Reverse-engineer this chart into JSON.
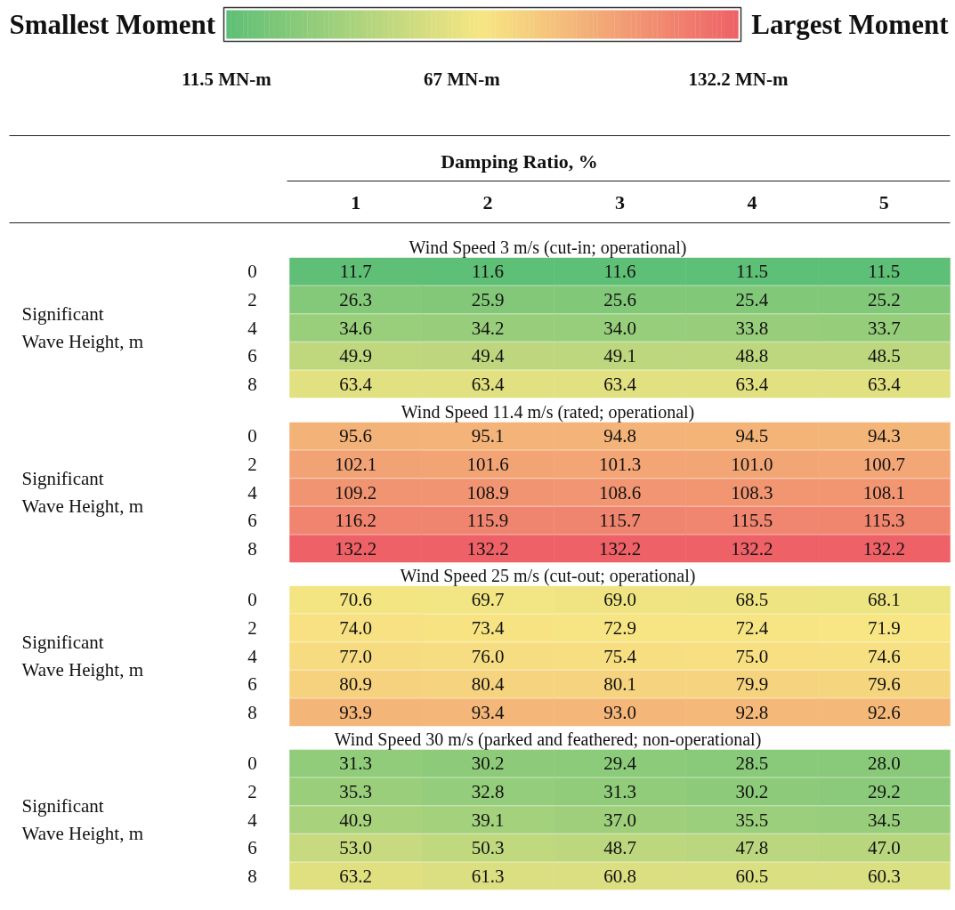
{
  "chart_data": [
    {
      "type": "heatmap",
      "title": "Wind Speed 3 m/s (cut-in; operational)",
      "xlabel": "Damping Ratio, %",
      "ylabel": "Significant\nWave Height, m",
      "annotations": [
        "Smallest Moment",
        "Largest Moment"
      ],
      "categories": [
        "1",
        "2",
        "3",
        "4",
        "5"
      ],
      "y_categories": [
        "0",
        "2",
        "4",
        "6",
        "8"
      ],
      "cells": [
        [
          11.7,
          11.6,
          11.6,
          11.5,
          11.5
        ],
        [
          26.3,
          25.9,
          25.6,
          25.4,
          25.2
        ],
        [
          34.6,
          34.2,
          34.0,
          33.8,
          33.7
        ],
        [
          49.9,
          49.4,
          49.1,
          48.8,
          48.5
        ],
        [
          63.4,
          63.4,
          63.4,
          63.4,
          63.4
        ]
      ],
      "cell_labels": [
        [
          "11.7",
          "11.6",
          "11.6",
          "11.5",
          "11.5"
        ],
        [
          "26.3",
          "25.9",
          "25.6",
          "25.4",
          "25.2"
        ],
        [
          "34.6",
          "34.2",
          "34.0",
          "33.8",
          "33.7"
        ],
        [
          "49.9",
          "49.4",
          "49.1",
          "48.8",
          "48.5"
        ],
        [
          "63.4",
          "63.4",
          "63.4",
          "63.4",
          "63.4"
        ]
      ],
      "data_labels": true,
      "clim": [
        11.5,
        132.2
      ],
      "cticks": [
        {
          "value": 11.5,
          "label": "11.5 MN-m"
        },
        {
          "value": 67,
          "label": "67 MN-m"
        },
        {
          "value": 132.2,
          "label": "132.2 MN-m"
        }
      ]
    },
    {
      "type": "heatmap",
      "title": "Wind Speed 11.4 m/s (rated; operational)",
      "ylabel": "Significant\nWave Height, m",
      "categories": [
        "1",
        "2",
        "3",
        "4",
        "5"
      ],
      "y_categories": [
        "0",
        "2",
        "4",
        "6",
        "8"
      ],
      "cells": [
        [
          95.6,
          95.1,
          94.8,
          94.5,
          94.3
        ],
        [
          102.1,
          101.6,
          101.3,
          101.0,
          100.7
        ],
        [
          109.2,
          108.9,
          108.6,
          108.3,
          108.1
        ],
        [
          116.2,
          115.9,
          115.7,
          115.5,
          115.3
        ],
        [
          132.2,
          132.2,
          132.2,
          132.2,
          132.2
        ]
      ],
      "cell_labels": [
        [
          "95.6",
          "95.1",
          "94.8",
          "94.5",
          "94.3"
        ],
        [
          "102.1",
          "101.6",
          "101.3",
          "101.0",
          "100.7"
        ],
        [
          "109.2",
          "108.9",
          "108.6",
          "108.3",
          "108.1"
        ],
        [
          "116.2",
          "115.9",
          "115.7",
          "115.5",
          "115.3"
        ],
        [
          "132.2",
          "132.2",
          "132.2",
          "132.2",
          "132.2"
        ]
      ],
      "data_labels": true,
      "tick_labels": "y"
    },
    {
      "type": "heatmap",
      "title": "Wind Speed 25 m/s (cut-out; operational)",
      "ylabel": "Significant\nWave Height, m",
      "categories": [
        "1",
        "2",
        "3",
        "4",
        "5"
      ],
      "y_categories": [
        "0",
        "2",
        "4",
        "6",
        "8"
      ],
      "cells": [
        [
          70.6,
          69.7,
          69.0,
          68.5,
          68.1
        ],
        [
          74.0,
          73.4,
          72.9,
          72.4,
          71.9
        ],
        [
          77.0,
          76.0,
          75.4,
          75.0,
          74.6
        ],
        [
          80.9,
          80.4,
          80.1,
          79.9,
          79.6
        ],
        [
          93.9,
          93.4,
          93.0,
          92.8,
          92.6
        ]
      ],
      "cell_labels": [
        [
          "70.6",
          "69.7",
          "69.0",
          "68.5",
          "68.1"
        ],
        [
          "74.0",
          "73.4",
          "72.9",
          "72.4",
          "71.9"
        ],
        [
          "77.0",
          "76.0",
          "75.4",
          "75.0",
          "74.6"
        ],
        [
          "80.9",
          "80.4",
          "80.1",
          "79.9",
          "79.6"
        ],
        [
          "93.9",
          "93.4",
          "93.0",
          "92.8",
          "92.6"
        ]
      ],
      "data_labels": true,
      "tick_labels": "y"
    },
    {
      "type": "heatmap",
      "title": "Wind Speed 30 m/s (parked and feathered; non-operational)",
      "ylabel": "Significant\nWave Height, m",
      "categories": [
        "1",
        "2",
        "3",
        "4",
        "5"
      ],
      "y_categories": [
        "0",
        "2",
        "4",
        "6",
        "8"
      ],
      "cells": [
        [
          31.3,
          30.2,
          29.4,
          28.5,
          28.0
        ],
        [
          35.3,
          32.8,
          31.3,
          30.2,
          29.2
        ],
        [
          40.9,
          39.1,
          37.0,
          35.5,
          34.5
        ],
        [
          53.0,
          50.3,
          48.7,
          47.8,
          47.0
        ],
        [
          63.2,
          61.3,
          60.8,
          60.5,
          60.3
        ]
      ],
      "cell_labels": [
        [
          "31.3",
          "30.2",
          "29.4",
          "28.5",
          "28.0"
        ],
        [
          "35.3",
          "32.8",
          "31.3",
          "30.2",
          "29.2"
        ],
        [
          "40.9",
          "39.1",
          "37.0",
          "35.5",
          "34.5"
        ],
        [
          "53.0",
          "50.3",
          "48.7",
          "47.8",
          "47.0"
        ],
        [
          "63.2",
          "61.3",
          "60.8",
          "60.5",
          "60.3"
        ]
      ],
      "data_labels": true,
      "tick_labels": "y"
    }
  ]
}
